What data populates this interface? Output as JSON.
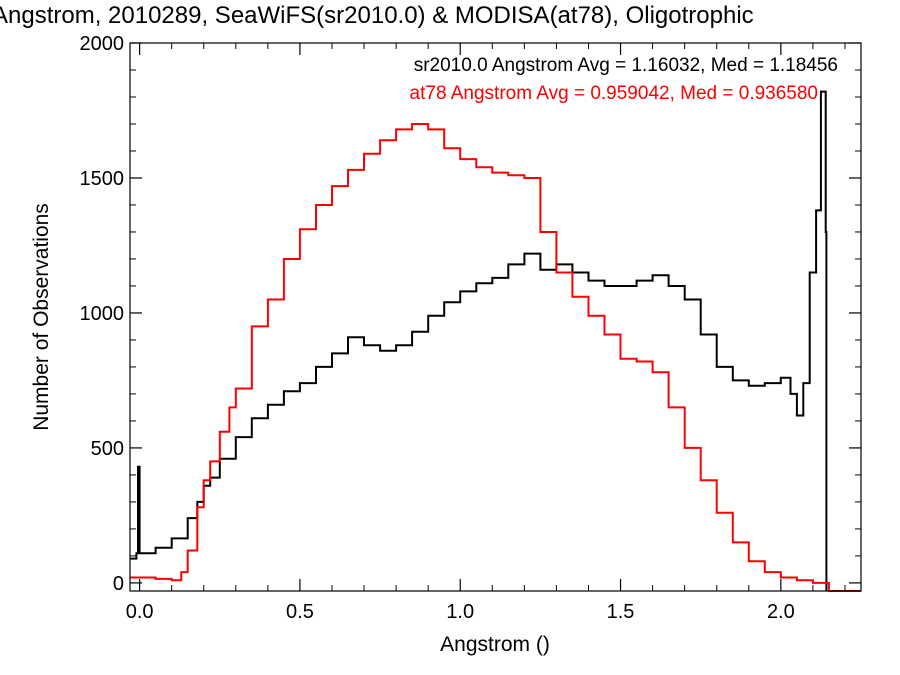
{
  "chart_data": {
    "type": "line",
    "title": "Angstrom, 2010289, SeaWiFS(sr2010.0) & MODISA(at78), Oligotrophic",
    "xlabel": "Angstrom ()",
    "ylabel": "Number of Observations",
    "xlim": [
      -0.03,
      2.25
    ],
    "ylim": [
      -30,
      2000
    ],
    "x_ticks": [
      0.0,
      0.5,
      1.0,
      1.5,
      2.0
    ],
    "x_tick_labels": [
      "0.0",
      "0.5",
      "1.0",
      "1.5",
      "2.0"
    ],
    "y_ticks": [
      0,
      500,
      1000,
      1500,
      2000
    ],
    "y_tick_labels": [
      "0",
      "500",
      "1000",
      "1500",
      "2000"
    ],
    "grid": false,
    "legend_position": "top-right",
    "annotations": [
      "sr2010.0 Angstrom Avg = 1.16032, Med = 1.18456",
      "at78 Angstrom Avg = 0.959042, Med = 0.936580"
    ],
    "series": [
      {
        "color": "#000000",
        "step": true,
        "points": [
          [
            -0.03,
            90
          ],
          [
            -0.01,
            110
          ],
          [
            -0.005,
            430
          ],
          [
            0.0,
            110
          ],
          [
            0.05,
            130
          ],
          [
            0.1,
            165
          ],
          [
            0.15,
            240
          ],
          [
            0.18,
            300
          ],
          [
            0.2,
            360
          ],
          [
            0.22,
            390
          ],
          [
            0.25,
            460
          ],
          [
            0.3,
            540
          ],
          [
            0.35,
            610
          ],
          [
            0.4,
            660
          ],
          [
            0.45,
            710
          ],
          [
            0.5,
            740
          ],
          [
            0.55,
            800
          ],
          [
            0.6,
            850
          ],
          [
            0.65,
            910
          ],
          [
            0.7,
            880
          ],
          [
            0.75,
            860
          ],
          [
            0.8,
            880
          ],
          [
            0.85,
            930
          ],
          [
            0.9,
            990
          ],
          [
            0.95,
            1040
          ],
          [
            1.0,
            1080
          ],
          [
            1.05,
            1110
          ],
          [
            1.1,
            1130
          ],
          [
            1.15,
            1180
          ],
          [
            1.2,
            1220
          ],
          [
            1.25,
            1160
          ],
          [
            1.3,
            1180
          ],
          [
            1.35,
            1150
          ],
          [
            1.4,
            1120
          ],
          [
            1.45,
            1100
          ],
          [
            1.5,
            1100
          ],
          [
            1.55,
            1120
          ],
          [
            1.6,
            1140
          ],
          [
            1.65,
            1100
          ],
          [
            1.7,
            1050
          ],
          [
            1.75,
            920
          ],
          [
            1.8,
            800
          ],
          [
            1.85,
            750
          ],
          [
            1.9,
            730
          ],
          [
            1.95,
            740
          ],
          [
            2.0,
            760
          ],
          [
            2.03,
            700
          ],
          [
            2.05,
            620
          ],
          [
            2.07,
            740
          ],
          [
            2.09,
            1150
          ],
          [
            2.11,
            1380
          ],
          [
            2.125,
            1820
          ],
          [
            2.14,
            1300
          ],
          [
            2.142,
            -30
          ]
        ]
      },
      {
        "color": "#ff0000",
        "step": true,
        "points": [
          [
            -0.03,
            20
          ],
          [
            0.05,
            15
          ],
          [
            0.1,
            10
          ],
          [
            0.13,
            40
          ],
          [
            0.15,
            120
          ],
          [
            0.18,
            280
          ],
          [
            0.2,
            380
          ],
          [
            0.22,
            450
          ],
          [
            0.25,
            560
          ],
          [
            0.28,
            650
          ],
          [
            0.3,
            720
          ],
          [
            0.35,
            950
          ],
          [
            0.4,
            1050
          ],
          [
            0.45,
            1200
          ],
          [
            0.5,
            1310
          ],
          [
            0.55,
            1400
          ],
          [
            0.6,
            1470
          ],
          [
            0.65,
            1530
          ],
          [
            0.7,
            1590
          ],
          [
            0.75,
            1640
          ],
          [
            0.8,
            1680
          ],
          [
            0.85,
            1700
          ],
          [
            0.9,
            1680
          ],
          [
            0.95,
            1610
          ],
          [
            1.0,
            1570
          ],
          [
            1.05,
            1540
          ],
          [
            1.1,
            1520
          ],
          [
            1.15,
            1510
          ],
          [
            1.2,
            1500
          ],
          [
            1.25,
            1300
          ],
          [
            1.3,
            1150
          ],
          [
            1.35,
            1060
          ],
          [
            1.4,
            990
          ],
          [
            1.45,
            920
          ],
          [
            1.5,
            830
          ],
          [
            1.55,
            820
          ],
          [
            1.6,
            780
          ],
          [
            1.65,
            650
          ],
          [
            1.7,
            500
          ],
          [
            1.75,
            380
          ],
          [
            1.8,
            260
          ],
          [
            1.85,
            150
          ],
          [
            1.9,
            80
          ],
          [
            1.95,
            40
          ],
          [
            2.0,
            20
          ],
          [
            2.05,
            10
          ],
          [
            2.1,
            0
          ],
          [
            2.15,
            -30
          ],
          [
            2.25,
            -30
          ]
        ]
      }
    ]
  }
}
